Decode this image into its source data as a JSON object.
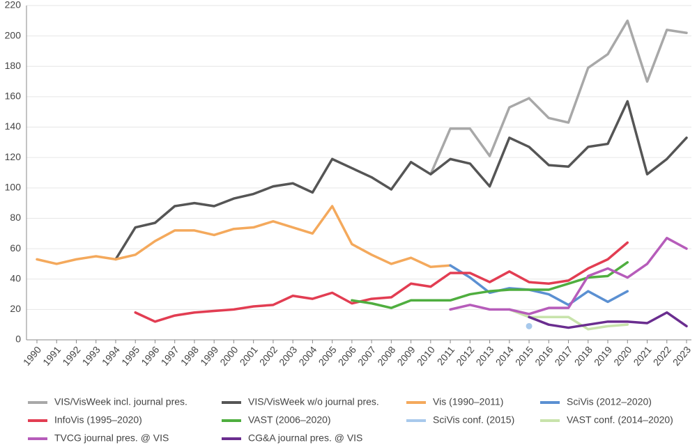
{
  "chart_data": {
    "type": "line",
    "categories": [
      "1990",
      "1991",
      "1992",
      "1993",
      "1994",
      "1995",
      "1996",
      "1997",
      "1998",
      "1999",
      "2000",
      "2001",
      "2002",
      "2003",
      "2004",
      "2005",
      "2006",
      "2007",
      "2008",
      "2009",
      "2010",
      "2011",
      "2012",
      "2013",
      "2014",
      "2015",
      "2016",
      "2017",
      "2018",
      "2019",
      "2020",
      "2021",
      "2022",
      "2023"
    ],
    "ylim": [
      0,
      220
    ],
    "yticks": [
      0,
      20,
      40,
      60,
      80,
      100,
      120,
      140,
      160,
      180,
      200,
      220
    ],
    "grid": true,
    "series": [
      {
        "name": "VIS/VisWeek incl. journal pres.",
        "color": "#a8a8a8",
        "values": [
          null,
          null,
          null,
          null,
          null,
          null,
          null,
          null,
          null,
          null,
          null,
          null,
          null,
          null,
          null,
          null,
          null,
          null,
          null,
          null,
          109,
          139,
          139,
          121,
          153,
          159,
          146,
          143,
          179,
          188,
          210,
          170,
          204,
          202
        ]
      },
      {
        "name": "VIS/VisWeek w/o journal pres.",
        "color": "#555555",
        "values": [
          null,
          null,
          null,
          null,
          53,
          74,
          77,
          88,
          90,
          88,
          93,
          96,
          101,
          103,
          97,
          119,
          113,
          107,
          99,
          117,
          109,
          119,
          116,
          101,
          133,
          127,
          115,
          114,
          127,
          129,
          157,
          109,
          119,
          133
        ]
      },
      {
        "name": "Vis (1990–2011)",
        "color": "#f4a95c",
        "values": [
          53,
          50,
          53,
          55,
          53,
          56,
          65,
          72,
          72,
          69,
          73,
          74,
          78,
          74,
          70,
          88,
          63,
          56,
          50,
          54,
          48,
          49,
          null,
          null,
          null,
          null,
          null,
          null,
          null,
          null,
          null,
          null,
          null,
          null
        ]
      },
      {
        "name": "SciVis (2012–2020)",
        "color": "#5b90d2",
        "values": [
          null,
          null,
          null,
          null,
          null,
          null,
          null,
          null,
          null,
          null,
          null,
          null,
          null,
          null,
          null,
          null,
          null,
          null,
          null,
          null,
          null,
          49,
          41,
          31,
          34,
          33,
          30,
          23,
          32,
          25,
          32,
          null,
          null,
          null
        ]
      },
      {
        "name": "InfoVis (1995–2020)",
        "color": "#e23d52",
        "values": [
          null,
          null,
          null,
          null,
          null,
          18,
          12,
          16,
          18,
          19,
          20,
          22,
          23,
          29,
          27,
          31,
          24,
          27,
          28,
          37,
          35,
          44,
          44,
          38,
          45,
          38,
          37,
          39,
          47,
          53,
          64,
          null,
          null,
          null
        ]
      },
      {
        "name": "VAST (2006–2020)",
        "color": "#4fae3f",
        "values": [
          null,
          null,
          null,
          null,
          null,
          null,
          null,
          null,
          null,
          null,
          null,
          null,
          null,
          null,
          null,
          null,
          26,
          24,
          21,
          26,
          26,
          26,
          30,
          32,
          33,
          33,
          33,
          37,
          41,
          42,
          51,
          null,
          null,
          null
        ]
      },
      {
        "name": "SciVis conf. (2015)",
        "color": "#a8c9ec",
        "values": [
          null,
          null,
          null,
          null,
          null,
          null,
          null,
          null,
          null,
          null,
          null,
          null,
          null,
          null,
          null,
          null,
          null,
          null,
          null,
          null,
          null,
          null,
          null,
          null,
          null,
          9,
          null,
          null,
          null,
          null,
          null,
          null,
          null,
          null
        ]
      },
      {
        "name": "VAST conf. (2014–2020)",
        "color": "#c8e3ab",
        "values": [
          null,
          null,
          null,
          null,
          null,
          null,
          null,
          null,
          null,
          null,
          null,
          null,
          null,
          null,
          null,
          null,
          null,
          null,
          null,
          null,
          null,
          null,
          null,
          null,
          20,
          15,
          15,
          15,
          7,
          9,
          10,
          null,
          null,
          null
        ]
      },
      {
        "name": "TVCG journal pres. @ VIS",
        "color": "#b65cba",
        "values": [
          null,
          null,
          null,
          null,
          null,
          null,
          null,
          null,
          null,
          null,
          null,
          null,
          null,
          null,
          null,
          null,
          null,
          null,
          null,
          null,
          null,
          20,
          23,
          20,
          20,
          17,
          21,
          21,
          42,
          47,
          41,
          50,
          67,
          60
        ]
      },
      {
        "name": "CG&A journal pres. @ VIS",
        "color": "#6a2d8f",
        "values": [
          null,
          null,
          null,
          null,
          null,
          null,
          null,
          null,
          null,
          null,
          null,
          null,
          null,
          null,
          null,
          null,
          null,
          null,
          null,
          null,
          null,
          null,
          null,
          null,
          null,
          15,
          10,
          8,
          10,
          12,
          12,
          11,
          18,
          9
        ]
      }
    ]
  }
}
